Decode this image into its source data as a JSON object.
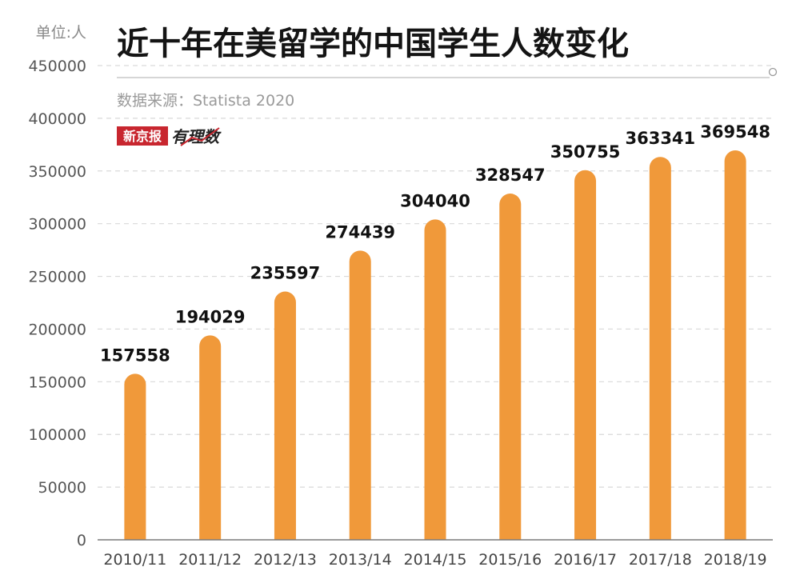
{
  "header": {
    "unit": "单位:人",
    "title": "近十年在美留学的中国学生人数变化",
    "source": "数据来源：Statista 2020",
    "logo_name": "新京报",
    "logo_tag": "有理数"
  },
  "colors": {
    "bar": "#f0993a",
    "logo_red": "#c8262f"
  },
  "chart_data": {
    "type": "bar",
    "title": "近十年在美留学的中国学生人数变化",
    "xlabel": "",
    "ylabel": "单位:人",
    "categories": [
      "2010/11",
      "2011/12",
      "2012/13",
      "2013/14",
      "2014/15",
      "2015/16",
      "2016/17",
      "2017/18",
      "2018/19"
    ],
    "values": [
      157558,
      194029,
      235597,
      274439,
      304040,
      328547,
      350755,
      363341,
      369548
    ],
    "ylim": [
      0,
      450000
    ],
    "yticks": [
      0,
      50000,
      100000,
      150000,
      200000,
      250000,
      300000,
      350000,
      400000,
      450000
    ],
    "grid": true,
    "legend": "none"
  }
}
